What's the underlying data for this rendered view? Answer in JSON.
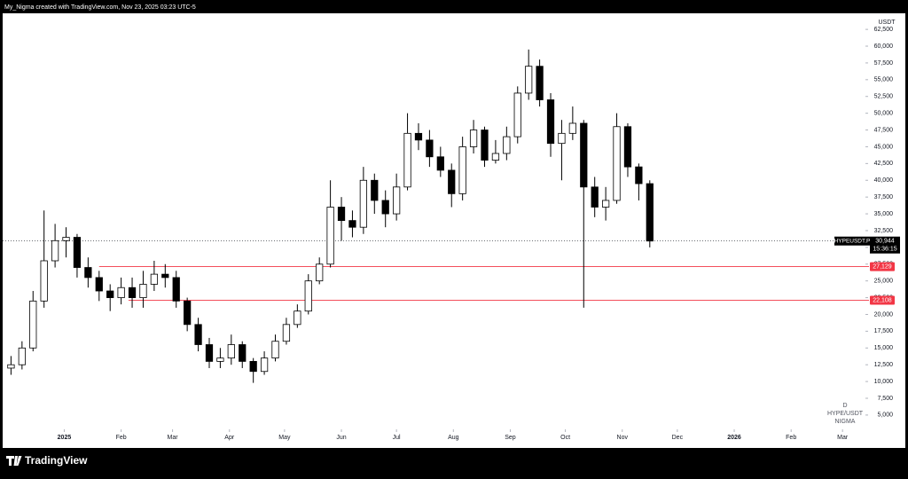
{
  "chart_data": {
    "type": "candlestick",
    "header": "My_Nigma created with TradingView.com, Nov 23, 2025 03:23 UTC-5",
    "unit": "USDT",
    "brand": "TradingView",
    "watermark": [
      "D",
      "HYPE/USDT",
      "NIGMA"
    ],
    "up_color": "#ffffff",
    "down_color": "#000000",
    "x": [
      0,
      6,
      12,
      18,
      24,
      30,
      36,
      42,
      48,
      54,
      60,
      66,
      72,
      78,
      84,
      90,
      96,
      102,
      108,
      114,
      120,
      126,
      132,
      138,
      144,
      150,
      156,
      162,
      168,
      174,
      180,
      186,
      192,
      198,
      204,
      210,
      216,
      222,
      228,
      234,
      240,
      246,
      252,
      258,
      264,
      270,
      276,
      282,
      288,
      294,
      300,
      306,
      312,
      318,
      324,
      330,
      336,
      342,
      348
    ],
    "open": [
      12000,
      12500,
      15000,
      22000,
      28000,
      31000,
      31500,
      27000,
      25500,
      23500,
      22500,
      24000,
      22500,
      24500,
      26000,
      25500,
      22000,
      18500,
      15500,
      13000,
      13500,
      15500,
      13000,
      11500,
      13500,
      16000,
      18500,
      20500,
      25000,
      27500,
      36000,
      34000,
      33000,
      40000,
      37000,
      35000,
      39000,
      47000,
      46000,
      43500,
      41500,
      38000,
      45000,
      47500,
      43000,
      44000,
      46500,
      53000,
      57000,
      52000,
      45500,
      47000,
      48500,
      39000,
      36000,
      37000,
      48000,
      42000,
      39500
    ],
    "high": [
      13800,
      16000,
      23500,
      35500,
      33500,
      33000,
      32000,
      28500,
      26500,
      24500,
      25500,
      25500,
      26500,
      28000,
      27500,
      26500,
      22500,
      19500,
      16500,
      15000,
      17000,
      16000,
      13500,
      14500,
      17000,
      19500,
      21500,
      26000,
      28500,
      40000,
      37500,
      35500,
      42000,
      41000,
      38500,
      41000,
      50000,
      48500,
      47500,
      45000,
      42500,
      46500,
      49000,
      48000,
      46000,
      48000,
      54000,
      59500,
      58000,
      53000,
      49000,
      51000,
      49000,
      40500,
      39000,
      50000,
      48500,
      42500,
      40000
    ],
    "low": [
      11000,
      11800,
      14500,
      21000,
      27000,
      28500,
      25500,
      24000,
      22000,
      20500,
      21500,
      21000,
      21000,
      23500,
      24000,
      21000,
      17500,
      14500,
      12000,
      12000,
      12500,
      12000,
      9800,
      11000,
      13000,
      15500,
      18000,
      20000,
      24500,
      27000,
      31000,
      31500,
      32000,
      35000,
      33000,
      34000,
      38500,
      44500,
      42000,
      40500,
      36000,
      37000,
      44000,
      42000,
      42500,
      43000,
      45500,
      52000,
      51000,
      43500,
      40000,
      46000,
      21000,
      34500,
      34000,
      36500,
      40500,
      37000,
      30000
    ],
    "close": [
      12500,
      15000,
      22000,
      28000,
      31000,
      31500,
      27000,
      25500,
      23500,
      22500,
      24000,
      22500,
      24500,
      26000,
      25500,
      22000,
      18500,
      15500,
      13000,
      13500,
      15500,
      13000,
      11500,
      13500,
      16000,
      18500,
      20500,
      25000,
      27500,
      36000,
      34000,
      33000,
      40000,
      37000,
      35000,
      39000,
      47000,
      46000,
      43500,
      41500,
      38000,
      45000,
      47500,
      43000,
      44000,
      46500,
      53000,
      57000,
      52000,
      45500,
      47000,
      48500,
      39000,
      36000,
      37000,
      48000,
      42000,
      39500,
      30944
    ],
    "xlim": [
      -6,
      465
    ],
    "xticks": [
      {
        "value": 29,
        "label": "2025"
      },
      {
        "value": 60,
        "label": "Feb"
      },
      {
        "value": 88,
        "label": "Mar"
      },
      {
        "value": 119,
        "label": "Apr"
      },
      {
        "value": 149,
        "label": "May"
      },
      {
        "value": 180,
        "label": "Jun"
      },
      {
        "value": 210,
        "label": "Jul"
      },
      {
        "value": 241,
        "label": "Aug"
      },
      {
        "value": 272,
        "label": "Sep"
      },
      {
        "value": 302,
        "label": "Oct"
      },
      {
        "value": 333,
        "label": "Nov"
      },
      {
        "value": 363,
        "label": "Dec"
      },
      {
        "value": 394,
        "label": "2026"
      },
      {
        "value": 425,
        "label": "Feb"
      },
      {
        "value": 453,
        "label": "Mar"
      }
    ],
    "ylim": [
      3400,
      64500
    ],
    "yticks": [
      {
        "value": 5000,
        "label": "5,000"
      },
      {
        "value": 7500,
        "label": "7,500"
      },
      {
        "value": 10000,
        "label": "10,000"
      },
      {
        "value": 12500,
        "label": "12,500"
      },
      {
        "value": 15000,
        "label": "15,000"
      },
      {
        "value": 17500,
        "label": "17,500"
      },
      {
        "value": 20000,
        "label": "20,000"
      },
      {
        "value": 22500,
        "label": "22,500"
      },
      {
        "value": 25000,
        "label": "25,000"
      },
      {
        "value": 27500,
        "label": "27,500"
      },
      {
        "value": 30000,
        "label": "30,000"
      },
      {
        "value": 32500,
        "label": "32,500"
      },
      {
        "value": 35000,
        "label": "35,000"
      },
      {
        "value": 37500,
        "label": "37,500"
      },
      {
        "value": 40000,
        "label": "40,000"
      },
      {
        "value": 42500,
        "label": "42,500"
      },
      {
        "value": 45000,
        "label": "45,000"
      },
      {
        "value": 47500,
        "label": "47,500"
      },
      {
        "value": 50000,
        "label": "50,000"
      },
      {
        "value": 52500,
        "label": "52,500"
      },
      {
        "value": 55000,
        "label": "55,000"
      },
      {
        "value": 57500,
        "label": "57,500"
      },
      {
        "value": 60000,
        "label": "60,000"
      },
      {
        "value": 62500,
        "label": "62,500"
      }
    ],
    "last_price": {
      "value": 30944,
      "label": "30,944",
      "symbol": "HYPEUSDT.P",
      "countdown": "15:36:15"
    },
    "levels": [
      {
        "value": 27129,
        "label": "27,129",
        "start": 48,
        "color": "#f23645"
      },
      {
        "value": 22108,
        "label": "22,108",
        "start": 64,
        "color": "#f23645"
      }
    ]
  }
}
